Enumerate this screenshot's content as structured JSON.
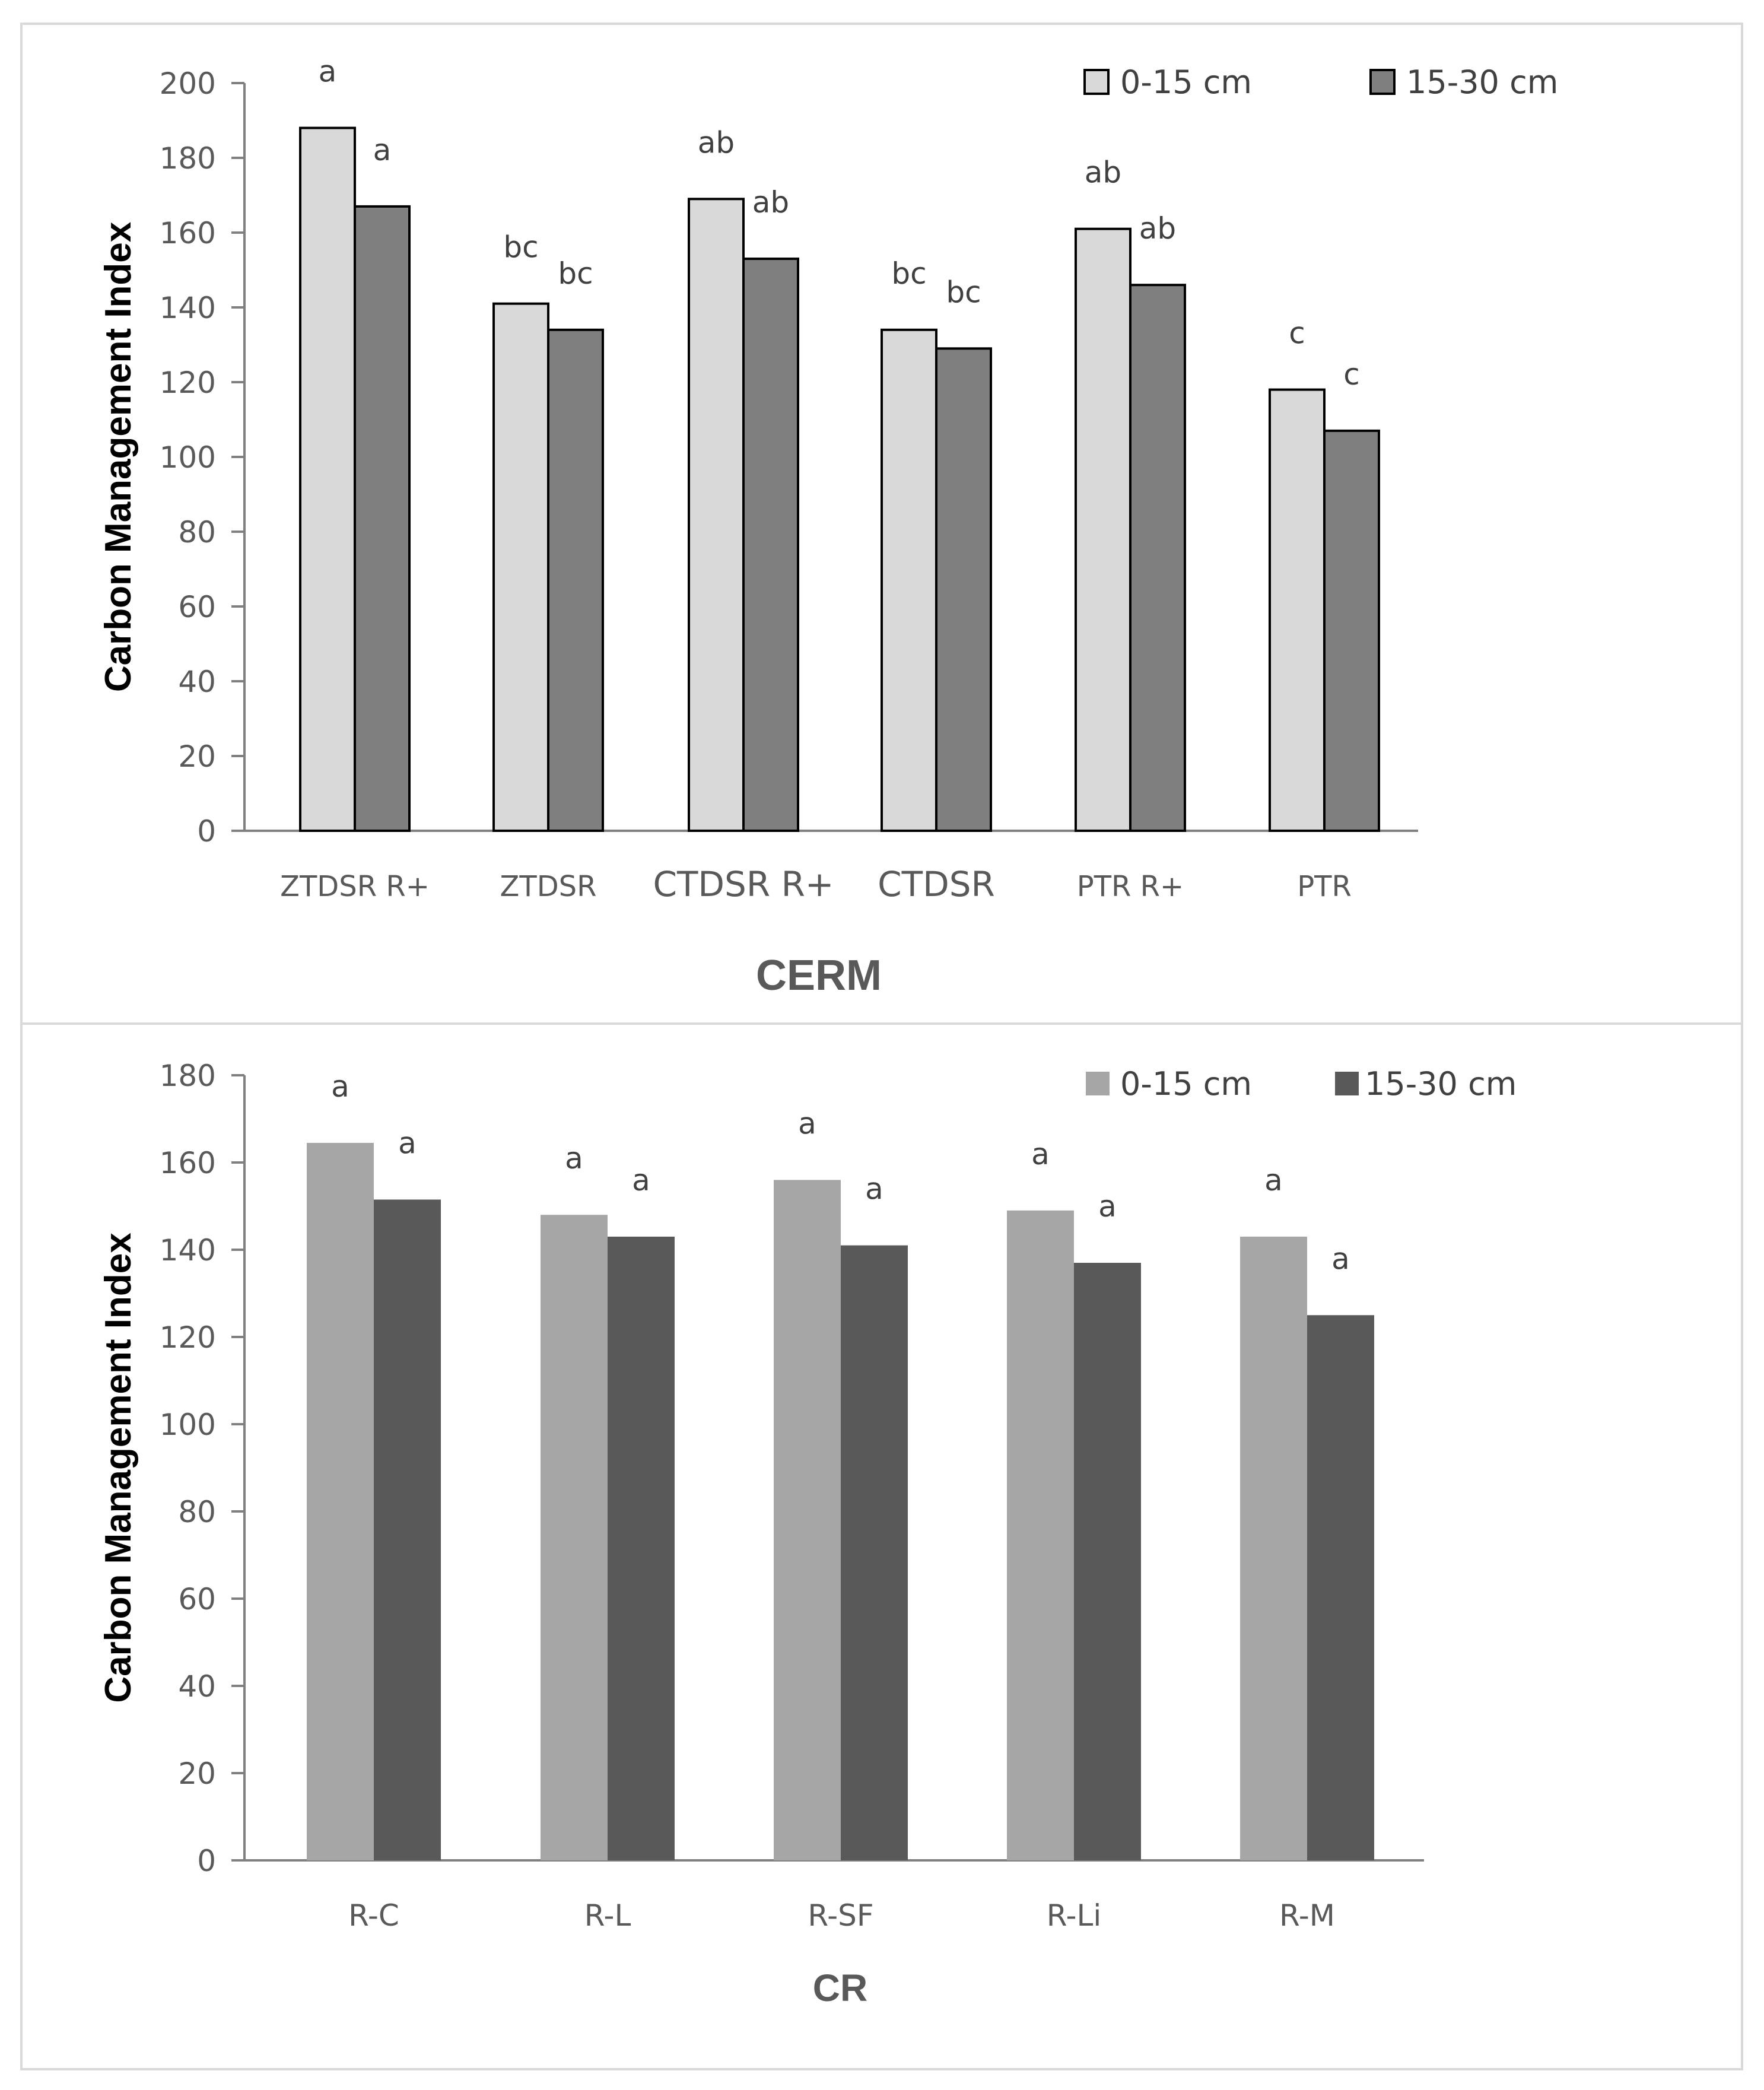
{
  "chart_data": [
    {
      "type": "bar",
      "panel": "top",
      "title": "",
      "xlabel": "CERM",
      "ylabel": "Carbon Management Index",
      "ylim": [
        0,
        200
      ],
      "yticks": [
        0,
        20,
        40,
        60,
        80,
        100,
        120,
        140,
        160,
        180,
        200
      ],
      "grid": false,
      "legend_position": "top-right",
      "categories": [
        "ZTDSR R+",
        "ZTDSR",
        "CTDSR R+",
        "CTDSR",
        "PTR R+",
        "PTR"
      ],
      "series": [
        {
          "name": "0-15 cm",
          "color": "#d9d9d9",
          "outline": "#000000",
          "values": [
            188,
            141,
            169,
            134,
            161,
            118
          ],
          "letters": [
            "a",
            "bc",
            "ab",
            "bc",
            "ab",
            "c"
          ]
        },
        {
          "name": "15-30 cm",
          "color": "#7f7f7f",
          "outline": "#000000",
          "values": [
            167,
            134,
            153,
            129,
            146,
            107
          ],
          "letters": [
            "a",
            "bc",
            "ab",
            "bc",
            "ab",
            "c"
          ]
        }
      ]
    },
    {
      "type": "bar",
      "panel": "bottom",
      "title": "",
      "xlabel": "CR",
      "ylabel": "Carbon Management Index",
      "ylim": [
        0,
        180
      ],
      "yticks": [
        0,
        20,
        40,
        60,
        80,
        100,
        120,
        140,
        160,
        180
      ],
      "grid": false,
      "legend_position": "top-right",
      "categories": [
        "R-C",
        "R-L",
        "R-SF",
        "R-Li",
        "R-M"
      ],
      "series": [
        {
          "name": "0-15 cm",
          "color": "#a6a6a6",
          "outline": "",
          "values": [
            164.5,
            148,
            156,
            149,
            143
          ],
          "letters": [
            "a",
            "a",
            "a",
            "a",
            "a"
          ]
        },
        {
          "name": "15-30 cm",
          "color": "#595959",
          "outline": "",
          "values": [
            151.5,
            143,
            141,
            137,
            125
          ],
          "letters": [
            "a",
            "a",
            "a",
            "a",
            "a"
          ]
        }
      ]
    }
  ]
}
